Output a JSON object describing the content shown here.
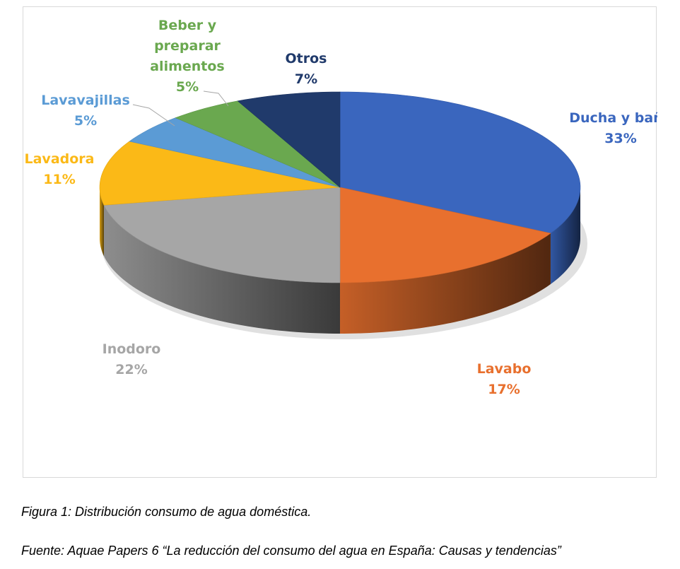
{
  "chart_data": {
    "type": "pie",
    "style": "3d",
    "slices": [
      {
        "label": "Ducha y baño",
        "value": 33,
        "value_label": "33%",
        "color": "#3A66BE"
      },
      {
        "label": "Lavabo",
        "value": 17,
        "value_label": "17%",
        "color": "#E8702E"
      },
      {
        "label": "Inodoro",
        "value": 22,
        "value_label": "22%",
        "color": "#A6A6A6"
      },
      {
        "label": "Lavadora",
        "value": 11,
        "value_label": "11%",
        "color": "#FBB917"
      },
      {
        "label": "Lavavajillas",
        "value": 5,
        "value_label": "5%",
        "color": "#5B9BD5"
      },
      {
        "label_lines": [
          "Beber y",
          "preparar",
          "alimentos"
        ],
        "value": 5,
        "value_label": "5%",
        "color": "#6AA84F"
      },
      {
        "label": "Otros",
        "value": 7,
        "value_label": "7%",
        "color": "#203A6B"
      }
    ],
    "label_colors": {
      "Ducha y baño": "#3A66BE",
      "Lavabo": "#E8702E",
      "Inodoro": "#A6A6A6",
      "Lavadora": "#FBB917",
      "Lavavajillas": "#5B9BD5",
      "Beber y preparar alimentos": "#6AA84F",
      "Otros": "#203A6B"
    }
  },
  "captions": {
    "figure": "Figura 1: Distribución consumo de agua doméstica.",
    "source": "Fuente:  Aquae Papers 6 “La reducción del consumo del agua en España: Causas y tendencias”"
  }
}
